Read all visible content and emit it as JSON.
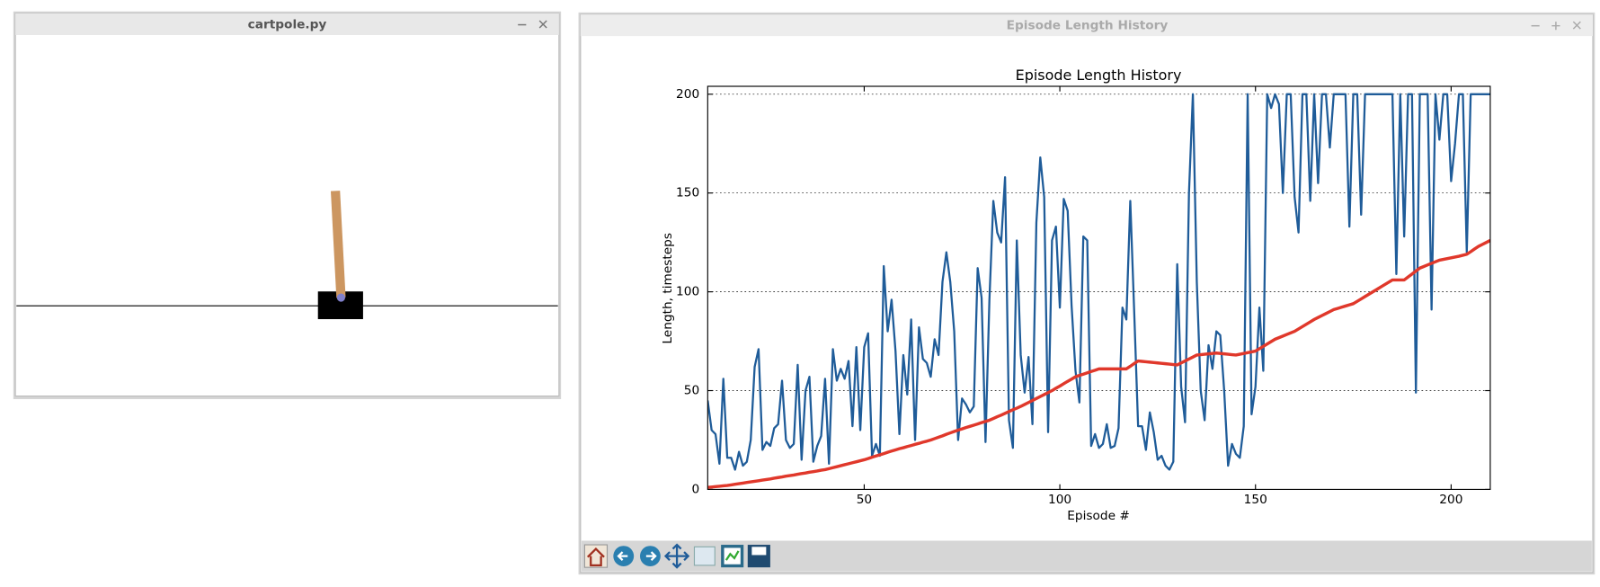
{
  "windows": {
    "cartpole": {
      "title": "cartpole.py"
    },
    "plot": {
      "title": "Episode Length History"
    }
  },
  "chart_data": {
    "type": "line",
    "title": "Episode Length History",
    "xlabel": "Episode #",
    "ylabel": "Length, timesteps",
    "x": [
      10,
      11,
      12,
      13,
      14,
      15,
      16,
      17,
      18,
      19,
      20,
      21,
      22,
      23,
      24,
      25,
      26,
      27,
      28,
      29,
      30,
      31,
      32,
      33,
      34,
      35,
      36,
      37,
      38,
      39,
      40,
      41,
      42,
      43,
      44,
      45,
      46,
      47,
      48,
      49,
      50,
      51,
      52,
      53,
      54,
      55,
      56,
      57,
      58,
      59,
      60,
      61,
      62,
      63,
      64,
      65,
      66,
      67,
      68,
      69,
      70,
      71,
      72,
      73,
      74,
      75,
      76,
      77,
      78,
      79,
      80,
      81,
      82,
      83,
      84,
      85,
      86,
      87,
      88,
      89,
      90,
      91,
      92,
      93,
      94,
      95,
      96,
      97,
      98,
      99,
      100,
      101,
      102,
      103,
      104,
      105,
      106,
      107,
      108,
      109,
      110,
      111,
      112,
      113,
      114,
      115,
      116,
      117,
      118,
      119,
      120,
      121,
      122,
      123,
      124,
      125,
      126,
      127,
      128,
      129,
      130,
      131,
      132,
      133,
      134,
      135,
      136,
      137,
      138,
      139,
      140,
      141,
      142,
      143,
      144,
      145,
      146,
      147,
      148,
      149,
      150,
      151,
      152,
      153,
      154,
      155,
      156,
      157,
      158,
      159,
      160,
      161,
      162,
      163,
      164,
      165,
      166,
      167,
      168,
      169,
      170,
      171,
      172,
      173,
      174,
      175,
      176,
      177,
      178,
      179,
      180,
      181,
      182,
      183,
      184,
      185,
      186,
      187,
      188,
      189,
      190,
      191,
      192,
      193,
      194,
      195,
      196,
      197,
      198,
      199,
      200,
      201,
      202,
      203,
      204,
      205,
      206,
      207,
      208,
      209,
      210
    ],
    "series": [
      {
        "color": "#1f5c99",
        "values": [
          45,
          30,
          28,
          13,
          56,
          16,
          16,
          10,
          19,
          12,
          14,
          25,
          62,
          71,
          20,
          24,
          22,
          31,
          33,
          55,
          25,
          21,
          23,
          63,
          15,
          50,
          57,
          14,
          22,
          27,
          56,
          13,
          71,
          55,
          61,
          56,
          65,
          32,
          72,
          30,
          72,
          79,
          17,
          23,
          17,
          113,
          80,
          96,
          70,
          28,
          68,
          48,
          86,
          25,
          82,
          66,
          64,
          57,
          76,
          68,
          105,
          120,
          105,
          80,
          25,
          46,
          43,
          39,
          42,
          112,
          97,
          24,
          96,
          146,
          130,
          125,
          158,
          35,
          21,
          126,
          68,
          49,
          67,
          33,
          135,
          168,
          148,
          29,
          126,
          133,
          92,
          147,
          141,
          93,
          60,
          44,
          128,
          126,
          22,
          28,
          21,
          23,
          33,
          21,
          22,
          31,
          92,
          86,
          146,
          90,
          32,
          32,
          20,
          39,
          29,
          15,
          17,
          12,
          10,
          14,
          114,
          52,
          34,
          150,
          200,
          105,
          50,
          35,
          73,
          61,
          80,
          78,
          50,
          12,
          23,
          18,
          16,
          32,
          200,
          38,
          52,
          92,
          60,
          200,
          193,
          200,
          195,
          150,
          200,
          200,
          148,
          130,
          200,
          200,
          146,
          200,
          155,
          200,
          200,
          173,
          200,
          200,
          200,
          200,
          133,
          200,
          200,
          139,
          200,
          200,
          200,
          200,
          200,
          200,
          200,
          200,
          109,
          200,
          128,
          200,
          200,
          49,
          200,
          200,
          200,
          91,
          200,
          177,
          200,
          200,
          156,
          175,
          200,
          200,
          120,
          200,
          200,
          200,
          200,
          200,
          200
        ]
      },
      {
        "color": "#e0382b",
        "values": [
          1,
          1.2,
          1.4,
          1.6,
          1.8,
          2,
          2.3,
          2.6,
          2.9,
          3.2,
          3.5,
          3.8,
          4.1,
          4.4,
          4.7,
          5,
          5.3,
          5.7,
          6,
          6.3,
          6.7,
          7,
          7.3,
          7.7,
          8,
          8.3,
          8.7,
          9,
          9.3,
          9.7,
          10,
          10.5,
          11,
          11.5,
          12,
          12.5,
          13,
          13.5,
          14,
          14.5,
          15,
          15.6,
          16.3,
          16.9,
          17.5,
          18.1,
          18.8,
          19.4,
          20,
          20.6,
          21.1,
          21.7,
          22.2,
          22.8,
          23.3,
          23.9,
          24.4,
          25,
          25.7,
          26.4,
          27.1,
          27.9,
          28.6,
          29.3,
          30,
          30.6,
          31.3,
          31.9,
          32.5,
          33.1,
          33.8,
          34.4,
          35,
          35.9,
          36.8,
          37.6,
          38.5,
          39.4,
          40.3,
          41.1,
          42,
          43,
          44,
          45,
          46,
          47,
          48,
          49,
          50,
          51.2,
          52.3,
          53.5,
          54.7,
          55.8,
          57,
          57.7,
          58.3,
          59,
          59.7,
          60.3,
          61,
          61,
          61,
          61,
          61,
          61,
          61,
          61,
          62.3,
          63.7,
          65,
          64.8,
          64.6,
          64.4,
          64.2,
          64,
          63.8,
          63.6,
          63.4,
          63.2,
          63,
          64,
          65,
          66,
          67,
          68,
          68.2,
          68.4,
          68.6,
          68.8,
          69,
          68.8,
          68.6,
          68.4,
          68.2,
          68,
          68.4,
          68.8,
          69.2,
          69.6,
          70,
          71.2,
          72.4,
          73.6,
          74.8,
          76,
          76.8,
          77.6,
          78.4,
          79.2,
          80,
          81.2,
          82.4,
          83.6,
          84.8,
          86,
          87,
          88,
          89,
          90,
          91,
          91.6,
          92.2,
          92.8,
          93.4,
          94,
          95.2,
          96.4,
          97.6,
          98.8,
          100,
          101.2,
          102.4,
          103.6,
          104.8,
          106,
          106,
          106,
          106,
          107.5,
          109,
          110.5,
          112,
          112.8,
          113.6,
          114.4,
          115.2,
          116,
          116.4,
          116.8,
          117.2,
          117.6,
          118,
          118.5,
          119,
          120.3,
          121.7,
          123,
          124,
          125,
          126
        ]
      }
    ],
    "xlim": [
      10,
      210
    ],
    "xticks": [
      50,
      100,
      150,
      200
    ],
    "ylim": [
      0,
      204
    ],
    "yticks": [
      0,
      50,
      100,
      150,
      200
    ],
    "grid": true
  }
}
